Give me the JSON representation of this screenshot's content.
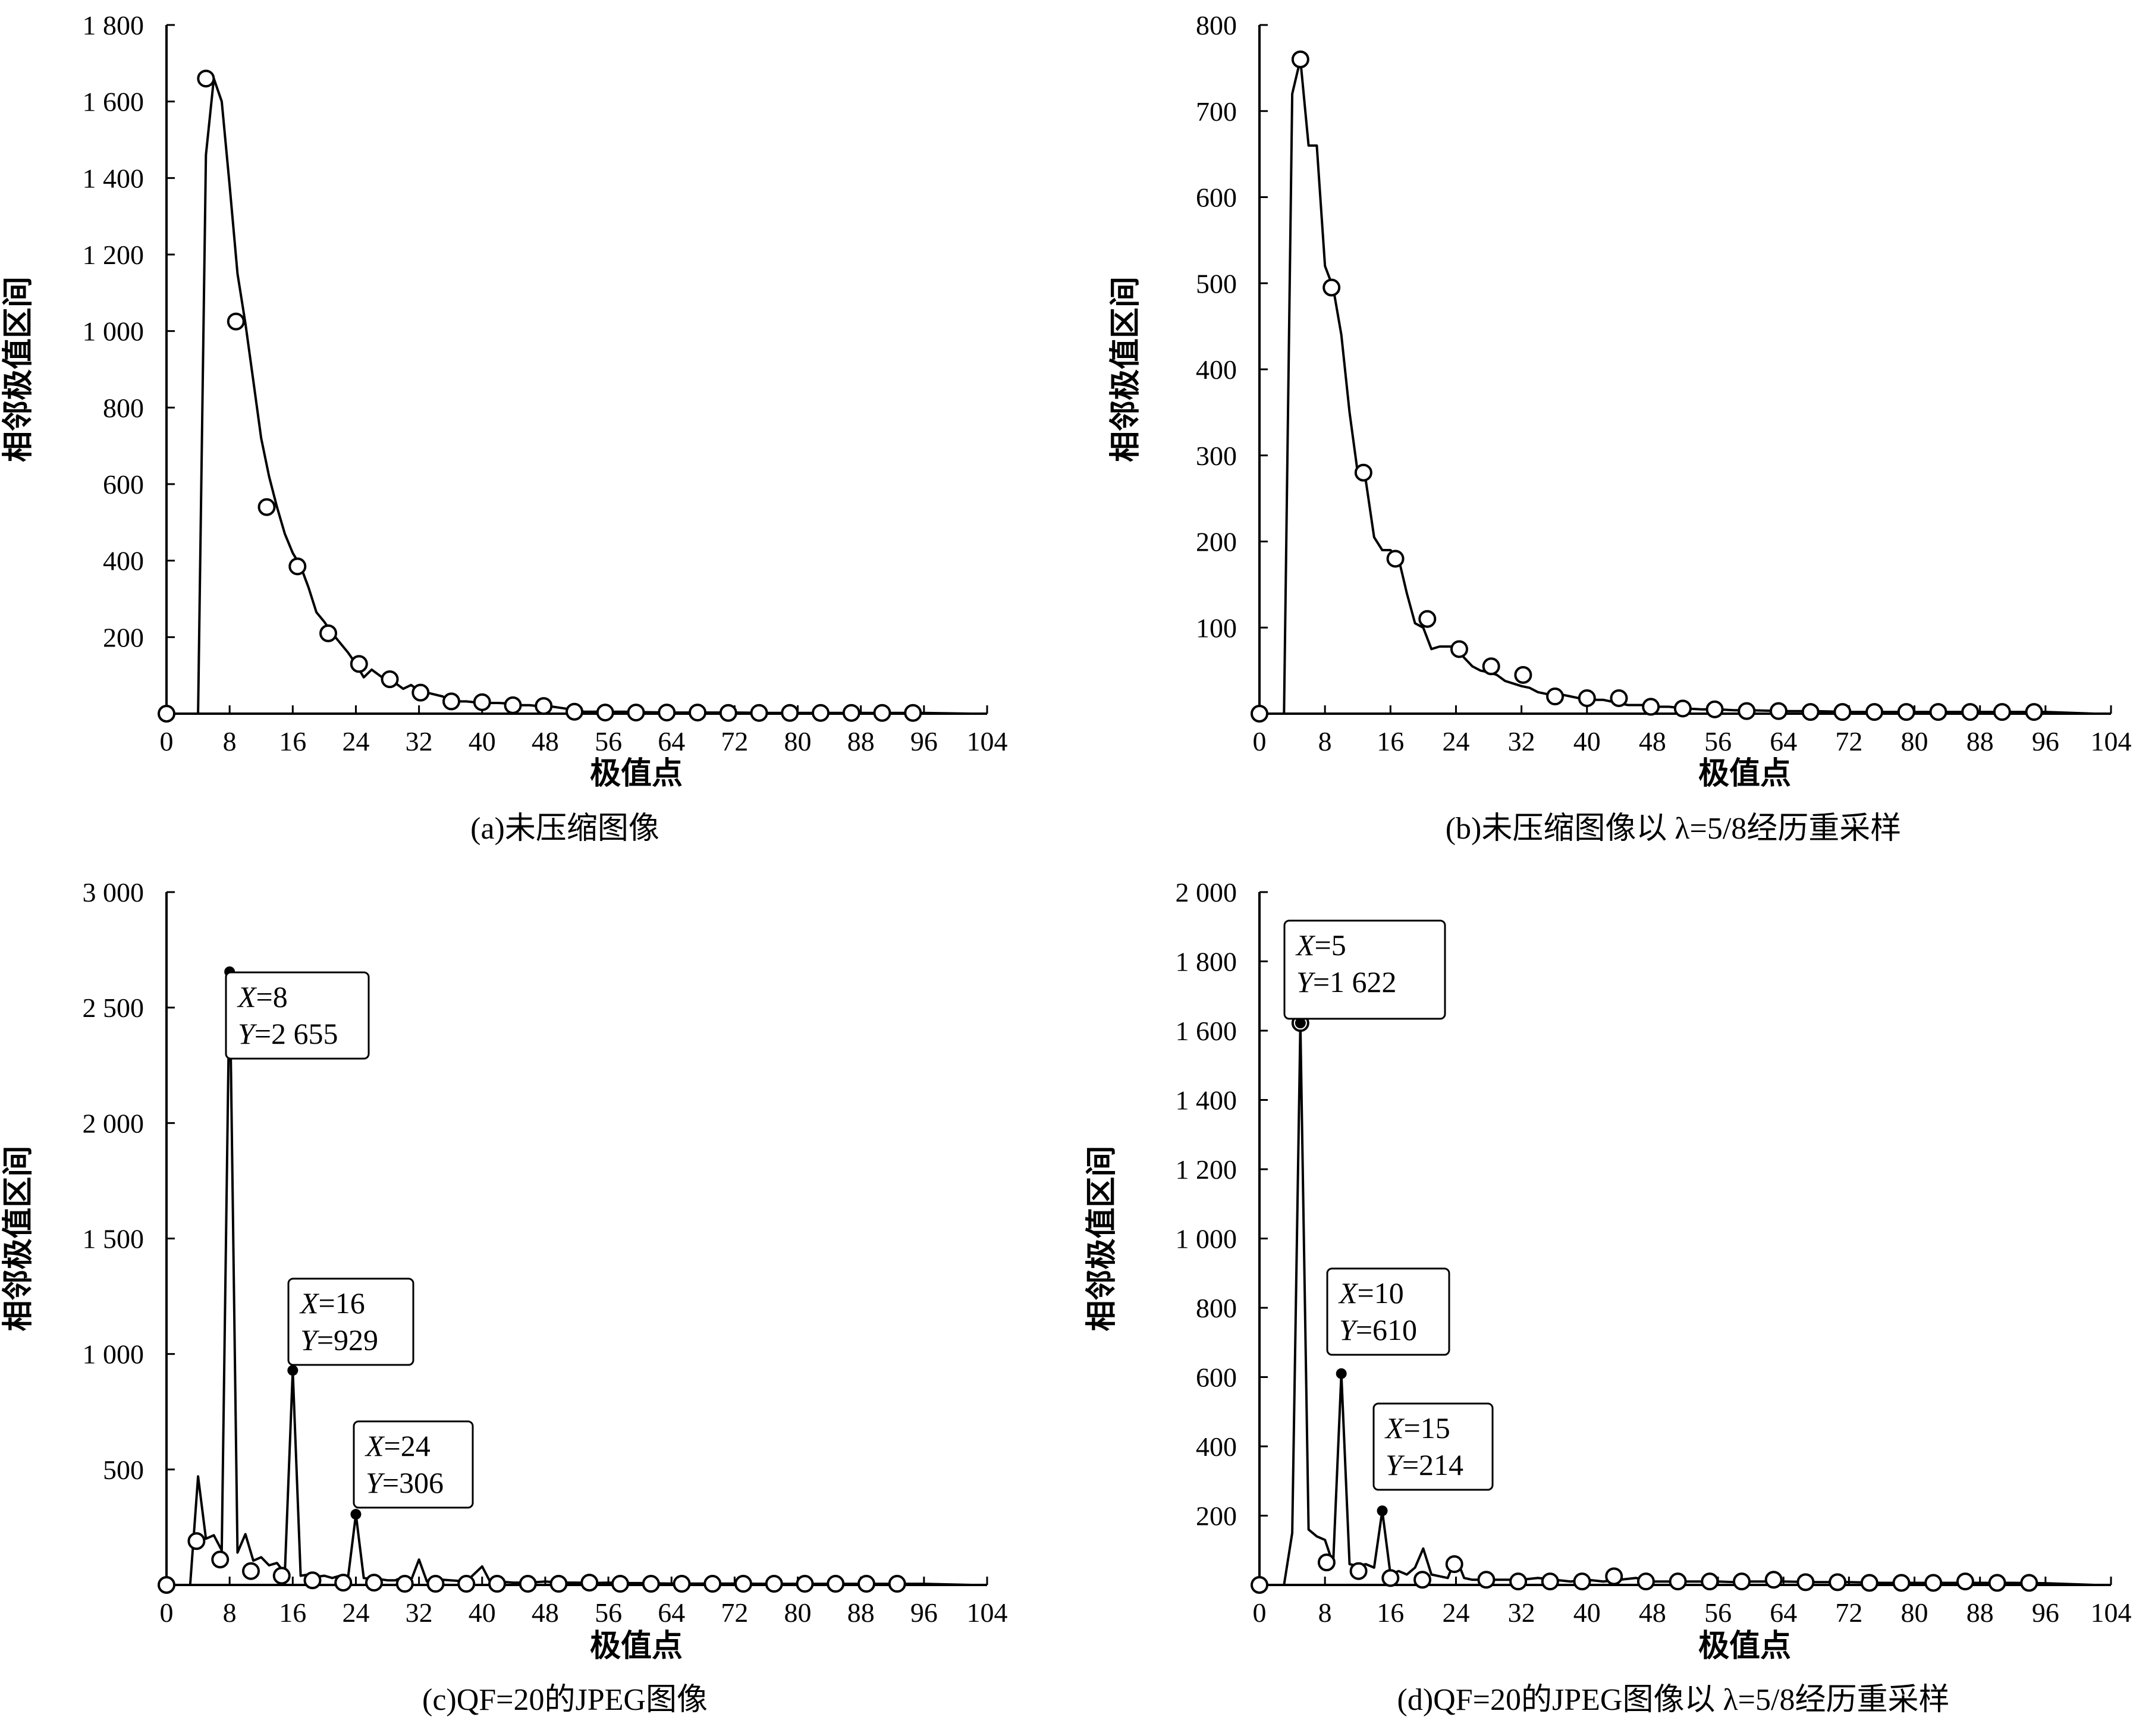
{
  "chart_data": [
    {
      "type": "line",
      "caption": "(a)未压缩图像",
      "xlabel": "极值点",
      "ylabel": "相邻极值区间",
      "xlim": [
        0,
        104
      ],
      "ylim": [
        0,
        1800
      ],
      "xticks": [
        0,
        8,
        16,
        24,
        32,
        40,
        48,
        56,
        64,
        72,
        80,
        88,
        96,
        104
      ],
      "xtick_labels": [
        "0",
        "8",
        "16",
        "24",
        "32",
        "40",
        "48",
        "56",
        "64",
        "72",
        "80",
        "88",
        "96",
        "104"
      ],
      "yticks": [
        200,
        400,
        600,
        800,
        1000,
        1200,
        1400,
        1600,
        1800
      ],
      "ytick_labels": [
        "200",
        "400",
        "600",
        "800",
        "1 000",
        "1 200",
        "1 400",
        "1 600",
        "1 800"
      ],
      "series": [
        {
          "x": [
            2,
            4,
            5,
            6,
            7,
            8,
            9,
            10,
            11,
            12,
            13,
            14,
            15,
            16,
            17,
            18,
            19,
            20,
            21,
            22,
            23,
            24,
            25,
            26,
            27,
            28,
            29,
            30,
            31,
            32,
            33,
            34,
            35,
            36,
            37,
            38,
            39,
            40,
            41,
            42,
            43,
            44,
            45,
            46,
            47,
            48,
            49,
            50,
            51,
            52,
            53,
            54,
            56,
            58,
            60,
            64,
            68,
            72,
            76,
            80,
            84,
            88,
            92,
            96,
            102
          ],
          "y": [
            0,
            0,
            1460,
            1660,
            1600,
            1380,
            1150,
            1020,
            870,
            720,
            620,
            540,
            470,
            420,
            385,
            330,
            265,
            240,
            210,
            185,
            160,
            130,
            95,
            115,
            100,
            85,
            80,
            65,
            75,
            60,
            55,
            50,
            45,
            35,
            32,
            32,
            30,
            30,
            28,
            28,
            27,
            25,
            22,
            22,
            20,
            20,
            18,
            15,
            12,
            8,
            5,
            5,
            5,
            5,
            4,
            3,
            3,
            3,
            2,
            2,
            2,
            2,
            2,
            2,
            0
          ]
        }
      ],
      "markers": {
        "x": [
          0,
          5,
          8.8,
          12.7,
          16.6,
          20.5,
          24.4,
          28.3,
          32.2,
          36.1,
          40,
          43.9,
          47.8,
          51.7,
          55.6,
          59.5,
          63.4,
          67.3,
          71.2,
          75.1,
          79,
          82.9,
          86.8,
          90.7,
          94.6
        ],
        "y": [
          0,
          1660,
          1025,
          540,
          385,
          210,
          130,
          90,
          55,
          32,
          30,
          22,
          20,
          5,
          3,
          3,
          3,
          3,
          2,
          2,
          2,
          2,
          2,
          2,
          2
        ]
      },
      "annotations": []
    },
    {
      "type": "line",
      "caption": "(b)未压缩图像以 λ=5/8经历重采样",
      "xlabel": "极值点",
      "ylabel": "相邻极值区间",
      "xlim": [
        0,
        104
      ],
      "ylim": [
        0,
        800
      ],
      "xticks": [
        0,
        8,
        16,
        24,
        32,
        40,
        48,
        56,
        64,
        72,
        80,
        88,
        96,
        104
      ],
      "xtick_labels": [
        "0",
        "8",
        "16",
        "24",
        "32",
        "40",
        "48",
        "56",
        "64",
        "72",
        "80",
        "88",
        "96",
        "104"
      ],
      "yticks": [
        100,
        200,
        300,
        400,
        500,
        600,
        700,
        800
      ],
      "ytick_labels": [
        "100",
        "200",
        "300",
        "400",
        "500",
        "600",
        "700",
        "800"
      ],
      "series": [
        {
          "x": [
            2,
            3,
            4,
            5,
            6,
            7,
            8,
            9,
            10,
            11,
            12,
            13,
            14,
            15,
            16,
            17,
            18,
            19,
            20,
            21,
            22,
            23,
            24,
            25,
            26,
            27,
            28,
            29,
            30,
            31,
            32,
            33,
            34,
            35,
            36,
            37,
            38,
            39,
            40,
            41,
            42,
            43,
            44,
            45,
            46,
            47,
            48,
            50,
            52,
            54,
            56,
            58,
            60,
            64,
            68,
            72,
            76,
            80,
            84,
            88,
            92,
            96,
            102
          ],
          "y": [
            0,
            0,
            720,
            760,
            660,
            660,
            520,
            495,
            440,
            350,
            280,
            270,
            205,
            190,
            190,
            180,
            140,
            105,
            100,
            75,
            78,
            78,
            78,
            65,
            55,
            50,
            48,
            45,
            38,
            35,
            32,
            30,
            25,
            23,
            22,
            22,
            20,
            18,
            18,
            16,
            16,
            14,
            12,
            10,
            10,
            10,
            8,
            8,
            6,
            5,
            5,
            4,
            4,
            3,
            3,
            2,
            2,
            2,
            2,
            2,
            2,
            2,
            0
          ]
        }
      ],
      "markers": {
        "x": [
          0,
          5,
          8.8,
          12.7,
          16.6,
          20.5,
          24.4,
          28.3,
          32.2,
          36.1,
          40,
          43.9,
          47.8,
          51.7,
          55.6,
          59.5,
          63.4,
          67.3,
          71.2,
          75.1,
          79,
          82.9,
          86.8,
          90.7,
          94.6
        ],
        "y": [
          0,
          760,
          495,
          280,
          180,
          110,
          75,
          55,
          45,
          20,
          18,
          18,
          8,
          6,
          5,
          3,
          3,
          2,
          2,
          2,
          2,
          2,
          2,
          2,
          2
        ]
      },
      "annotations": []
    },
    {
      "type": "line",
      "caption": "(c)QF=20的JPEG图像",
      "xlabel": "极值点",
      "ylabel": "相邻极值区间",
      "xlim": [
        0,
        104
      ],
      "ylim": [
        0,
        3000
      ],
      "xticks": [
        0,
        8,
        16,
        24,
        32,
        40,
        48,
        56,
        64,
        72,
        80,
        88,
        96,
        104
      ],
      "xtick_labels": [
        "0",
        "8",
        "16",
        "24",
        "32",
        "40",
        "48",
        "56",
        "64",
        "72",
        "80",
        "88",
        "96",
        "104"
      ],
      "yticks": [
        500,
        1000,
        1500,
        2000,
        2500,
        3000
      ],
      "ytick_labels": [
        "500",
        "1 000",
        "1 500",
        "2 000",
        "2 500",
        "3 000"
      ],
      "series": [
        {
          "x": [
            2,
            3,
            4,
            5,
            6,
            7,
            8,
            9,
            10,
            11,
            12,
            13,
            14,
            15,
            16,
            17,
            18,
            19,
            20,
            21,
            22,
            23,
            24,
            25,
            26,
            27,
            28,
            29,
            30,
            31,
            32,
            33,
            34,
            36,
            38,
            40,
            41,
            42,
            44,
            46,
            48,
            50,
            52,
            54,
            56,
            58,
            60,
            64,
            68,
            72,
            76,
            80,
            84,
            88,
            92,
            96,
            102
          ],
          "y": [
            0,
            0,
            470,
            200,
            215,
            150,
            2655,
            140,
            220,
            105,
            120,
            85,
            95,
            50,
            929,
            40,
            45,
            35,
            40,
            30,
            40,
            30,
            306,
            30,
            25,
            25,
            20,
            20,
            35,
            20,
            110,
            15,
            25,
            20,
            15,
            80,
            15,
            15,
            10,
            10,
            15,
            10,
            10,
            8,
            10,
            8,
            8,
            6,
            6,
            6,
            5,
            5,
            5,
            5,
            5,
            5,
            0
          ]
        }
      ],
      "markers": {
        "x": [
          0,
          3.8,
          6.8,
          10.7,
          14.6,
          18.5,
          22.4,
          26.3,
          30.2,
          34.1,
          38,
          41.9,
          45.8,
          49.7,
          53.6,
          57.5,
          61.4,
          65.3,
          69.2,
          73.1,
          77,
          80.9,
          84.8,
          88.7,
          92.6
        ],
        "y": [
          0,
          190,
          110,
          60,
          40,
          20,
          10,
          10,
          5,
          5,
          5,
          5,
          5,
          5,
          10,
          5,
          5,
          5,
          5,
          5,
          5,
          5,
          5,
          5,
          5
        ]
      },
      "annotations": [
        {
          "x": 8,
          "y": 2655,
          "lines": [
            [
              "X",
              "=8"
            ],
            [
              "Y",
              "=2 655"
            ]
          ]
        },
        {
          "x": 16,
          "y": 929,
          "lines": [
            [
              "X",
              "=16"
            ],
            [
              "Y",
              "=929"
            ]
          ]
        },
        {
          "x": 24,
          "y": 306,
          "lines": [
            [
              "X",
              "=24"
            ],
            [
              "Y",
              "=306"
            ]
          ]
        }
      ]
    },
    {
      "type": "line",
      "caption": "(d)QF=20的JPEG图像以 λ=5/8经历重采样",
      "xlabel": "极值点",
      "ylabel": "相邻极值区间",
      "xlim": [
        0,
        104
      ],
      "ylim": [
        0,
        2000
      ],
      "xticks": [
        0,
        8,
        16,
        24,
        32,
        40,
        48,
        56,
        64,
        72,
        80,
        88,
        96,
        104
      ],
      "xtick_labels": [
        "0",
        "8",
        "16",
        "24",
        "32",
        "40",
        "48",
        "56",
        "64",
        "72",
        "80",
        "88",
        "96",
        "104"
      ],
      "yticks": [
        200,
        400,
        600,
        800,
        1000,
        1200,
        1400,
        1600,
        1800,
        2000
      ],
      "ytick_labels": [
        "200",
        "400",
        "600",
        "800",
        "1 000",
        "1 200",
        "1 400",
        "1 600",
        "1 800",
        "2 000"
      ],
      "series": [
        {
          "x": [
            2,
            3,
            4,
            5,
            6,
            7,
            8,
            9,
            10,
            11,
            12,
            13,
            14,
            15,
            16,
            17,
            18,
            19,
            20,
            21,
            22,
            23,
            24,
            25,
            26,
            28,
            30,
            32,
            34,
            36,
            38,
            40,
            42,
            44,
            46,
            48,
            50,
            52,
            54,
            56,
            58,
            60,
            64,
            68,
            72,
            76,
            80,
            84,
            88,
            92,
            96,
            102
          ],
          "y": [
            0,
            0,
            150,
            1622,
            160,
            140,
            130,
            60,
            610,
            60,
            55,
            60,
            50,
            214,
            30,
            40,
            30,
            50,
            105,
            30,
            25,
            20,
            80,
            20,
            15,
            15,
            15,
            15,
            20,
            15,
            10,
            15,
            10,
            15,
            20,
            10,
            10,
            10,
            10,
            10,
            8,
            10,
            10,
            8,
            8,
            6,
            6,
            6,
            6,
            6,
            5,
            0
          ]
        }
      ],
      "markers": {
        "x": [
          0,
          5,
          8.2,
          12.1,
          16,
          19.9,
          23.8,
          27.7,
          31.6,
          35.5,
          39.4,
          43.3,
          47.2,
          51.1,
          55,
          58.9,
          62.8,
          66.7,
          70.6,
          74.5,
          78.4,
          82.3,
          86.2,
          90.1,
          94
        ],
        "y": [
          0,
          1622,
          65,
          40,
          20,
          15,
          60,
          15,
          10,
          10,
          10,
          25,
          10,
          10,
          10,
          10,
          15,
          8,
          8,
          6,
          6,
          6,
          10,
          6,
          6
        ]
      },
      "annotations": [
        {
          "x": 5,
          "y": 1622,
          "lines": [
            [
              "X",
              "=5"
            ],
            [
              "Y",
              "=1 622"
            ]
          ]
        },
        {
          "x": 10,
          "y": 610,
          "lines": [
            [
              "X",
              "=10"
            ],
            [
              "Y",
              "=610"
            ]
          ]
        },
        {
          "x": 15,
          "y": 214,
          "lines": [
            [
              "X",
              "=15"
            ],
            [
              "Y",
              "=214"
            ]
          ]
        }
      ]
    }
  ]
}
